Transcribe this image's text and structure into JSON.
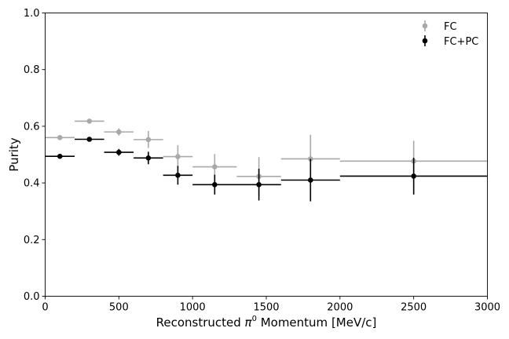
{
  "chart_data": {
    "type": "scatter",
    "title": "",
    "xlabel_parts": [
      "Reconstructed ",
      "π",
      "0",
      " Momentum [MeV/c]"
    ],
    "ylabel": "Purity",
    "xlim": [
      0,
      3000
    ],
    "ylim": [
      0,
      1.0
    ],
    "xticks": [
      0,
      500,
      1000,
      1500,
      2000,
      2500,
      3000
    ],
    "xtick_labels": [
      "0",
      "500",
      "1000",
      "1500",
      "2000",
      "2500",
      "3000"
    ],
    "yticks": [
      0.0,
      0.2,
      0.4,
      0.6,
      0.8,
      1.0
    ],
    "ytick_labels": [
      "0.0",
      "0.2",
      "0.4",
      "0.6",
      "0.8",
      "1.0"
    ],
    "grid": false,
    "legend_position": "top-right",
    "series": [
      {
        "name": "FC",
        "color": "#a9a9a9",
        "x": [
          100,
          300,
          500,
          700,
          900,
          1150,
          1450,
          1800,
          2500
        ],
        "x_low": [
          0,
          200,
          400,
          600,
          800,
          1000,
          1300,
          1600,
          2000
        ],
        "x_high": [
          200,
          400,
          600,
          800,
          1000,
          1300,
          1600,
          2000,
          3000
        ],
        "y": [
          0.56,
          0.618,
          0.58,
          0.553,
          0.493,
          0.457,
          0.423,
          0.485,
          0.477
        ],
        "y_err": [
          0.006,
          0.008,
          0.013,
          0.03,
          0.04,
          0.045,
          0.068,
          0.085,
          0.072
        ]
      },
      {
        "name": "FC+PC",
        "color": "#000000",
        "x": [
          100,
          300,
          500,
          700,
          900,
          1150,
          1450,
          1800,
          2500
        ],
        "x_low": [
          0,
          200,
          400,
          600,
          800,
          1000,
          1300,
          1600,
          2000
        ],
        "x_high": [
          200,
          400,
          600,
          800,
          1000,
          1300,
          1600,
          2000,
          3000
        ],
        "y": [
          0.494,
          0.554,
          0.508,
          0.488,
          0.427,
          0.394,
          0.394,
          0.41,
          0.424
        ],
        "y_err": [
          0.005,
          0.006,
          0.012,
          0.022,
          0.033,
          0.035,
          0.056,
          0.075,
          0.065
        ]
      }
    ]
  }
}
